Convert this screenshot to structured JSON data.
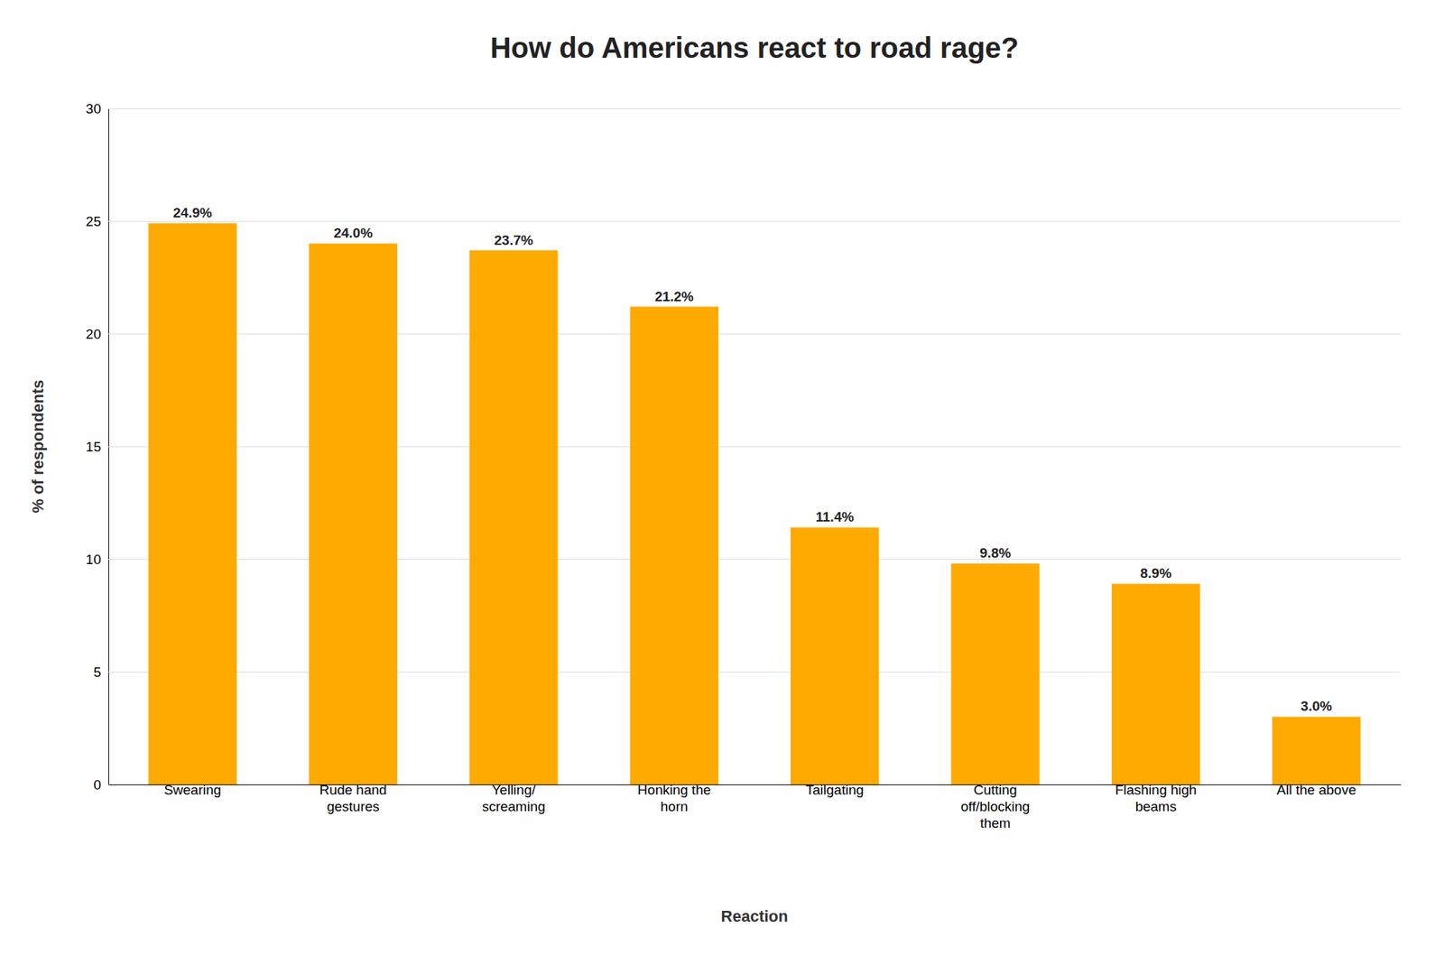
{
  "chart_data": {
    "type": "bar",
    "title": "How do Americans react to road rage?",
    "categories": [
      "Swearing",
      "Rude hand\ngestures",
      "Yelling/\nscreaming",
      "Honking the\nhorn",
      "Tailgating",
      "Cutting\noff/blocking\nthem",
      "Flashing high\nbeams",
      "All the above"
    ],
    "values": [
      24.9,
      24.0,
      23.7,
      21.2,
      11.4,
      9.8,
      8.9,
      3.0
    ],
    "value_labels": [
      "24.9%",
      "24.0%",
      "23.7%",
      "21.2%",
      "11.4%",
      "9.8%",
      "8.9%",
      "3.0%"
    ],
    "color": "#FFAA00",
    "xlabel": "Reaction",
    "ylabel": "% of respondents",
    "ylim": [
      0,
      30
    ],
    "yticks": [
      0,
      5,
      10,
      15,
      20,
      25,
      30
    ],
    "grid": true
  }
}
